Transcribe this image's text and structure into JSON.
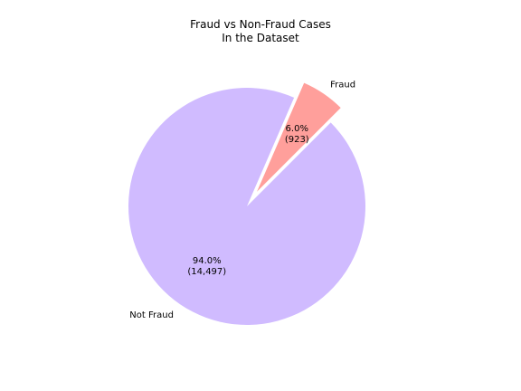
{
  "chart_data": {
    "type": "pie",
    "title_lines": [
      "Fraud vs Non-Fraud Cases",
      "In the Dataset"
    ],
    "labels": [
      "Fraud",
      "Not Fraud"
    ],
    "values": [
      923,
      14497
    ],
    "percent_labels": [
      "6.0%",
      "94.0%"
    ],
    "count_labels": [
      "(923)",
      "(14,497)"
    ],
    "colors": [
      "#ff9f9b",
      "#d0bbff"
    ],
    "explode": [
      0.15,
      0
    ],
    "start_angle_deg": 45,
    "legend": false
  }
}
